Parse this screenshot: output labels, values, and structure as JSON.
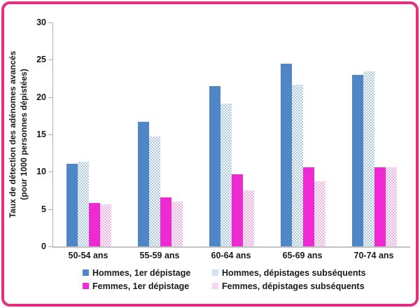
{
  "frame": {
    "border_color": "#e3307e",
    "background": "#ffffff"
  },
  "axis": {
    "line_color": "#b0b0b0",
    "text_color": "#1a1a1a"
  },
  "chart_data": {
    "type": "bar",
    "title": "",
    "ylabel_line1": "Taux de détection des adénomes avancés",
    "ylabel_line2": "(pour 1000 personnes dépistées)",
    "xlabel": "",
    "categories": [
      "50-54 ans",
      "55-59 ans",
      "60-64 ans",
      "65-69 ans",
      "70-74 ans"
    ],
    "series": [
      {
        "name": "Hommes, 1er dépistage",
        "color": "#4e86c8",
        "pattern": "solid",
        "values": [
          11.1,
          16.7,
          21.5,
          24.5,
          23.0
        ]
      },
      {
        "name": "Hommes, dépistages subséquents",
        "color": "#a9c7e9",
        "pattern": "checker",
        "values": [
          11.3,
          14.7,
          19.1,
          21.7,
          23.4
        ]
      },
      {
        "name": "Femmes, 1er dépistage",
        "color": "#f02ad2",
        "pattern": "solid",
        "values": [
          5.8,
          6.6,
          9.7,
          10.6,
          10.6
        ]
      },
      {
        "name": "Femmes, dépistages subséquents",
        "color": "#f8abec",
        "pattern": "checker",
        "values": [
          5.6,
          6.0,
          7.5,
          8.7,
          10.6
        ]
      }
    ],
    "ylim": [
      0,
      30
    ],
    "yticks": [
      0,
      5,
      10,
      15,
      20,
      25,
      30
    ],
    "grid": false,
    "legend_position": "bottom",
    "legend_rows": [
      [
        0,
        1
      ],
      [
        2,
        3
      ]
    ]
  }
}
